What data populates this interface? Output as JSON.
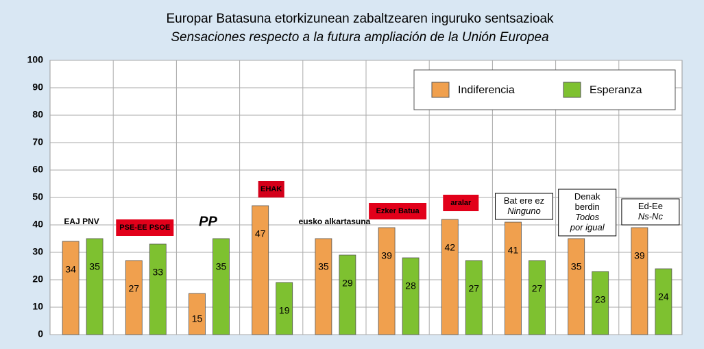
{
  "chart_data": {
    "type": "bar",
    "title": "Europar Batasuna etorkizunean zabaltzearen inguruko sentsazioak",
    "subtitle": "Sensaciones respecto a la futura ampliación de la Unión Europea",
    "categories": [
      "EAJ PNV",
      "PSE-EE PSOE",
      "PP",
      "EHAK",
      "eusko alkartasuna",
      "Ezker Batua",
      "aralar",
      [
        "Bat ere ez",
        "Ninguno"
      ],
      [
        "Denak",
        "berdin",
        "Todos",
        "por igual"
      ],
      [
        "Ed-Ee",
        "Ns-Nc"
      ]
    ],
    "series": [
      {
        "name": "Indiferencia",
        "color": "#f0a04e",
        "values": [
          34,
          27,
          15,
          47,
          35,
          39,
          42,
          41,
          35,
          39
        ]
      },
      {
        "name": "Esperanza",
        "color": "#7ec130",
        "values": [
          35,
          33,
          35,
          19,
          29,
          28,
          27,
          27,
          23,
          24
        ]
      }
    ],
    "ylim": [
      0,
      100
    ],
    "yticks": [
      0,
      10,
      20,
      30,
      40,
      50,
      60,
      70,
      80,
      90,
      100
    ],
    "grid": true,
    "legend": "upper right"
  }
}
